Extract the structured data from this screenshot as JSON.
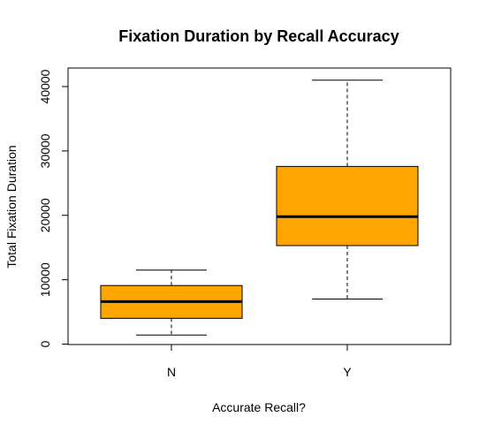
{
  "chart_data": {
    "type": "boxplot",
    "title": "Fixation Duration by Recall Accuracy",
    "xlabel": "Accurate Recall?",
    "ylabel": "Total Fixation Duration",
    "ylim": [
      0,
      41000
    ],
    "y_ticks": [
      "0",
      "10000",
      "20000",
      "30000",
      "40000"
    ],
    "y_tick_values": [
      0,
      10000,
      20000,
      30000,
      40000
    ],
    "categories": [
      "N",
      "Y"
    ],
    "boxes": [
      {
        "category": "N",
        "whisker_low": 1400,
        "q1": 4000,
        "median": 6600,
        "q3": 9100,
        "whisker_high": 11500
      },
      {
        "category": "Y",
        "whisker_low": 7000,
        "q1": 15300,
        "median": 19800,
        "q3": 27600,
        "whisker_high": 41000
      }
    ],
    "box_color": "#FFA500",
    "grid": false,
    "legend": "none"
  }
}
